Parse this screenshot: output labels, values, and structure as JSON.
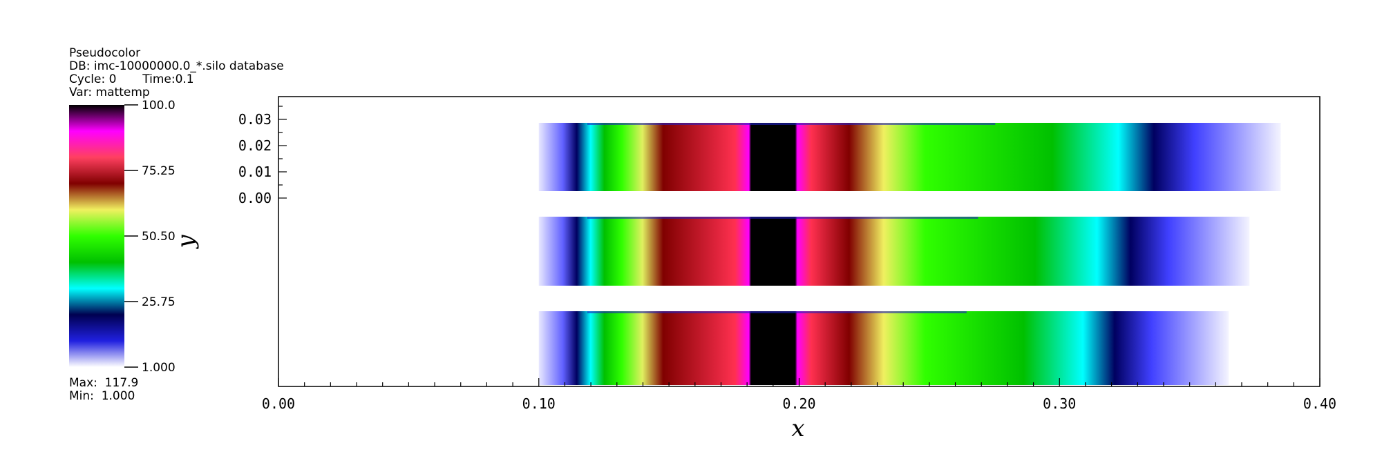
{
  "legend": {
    "plot_type": "Pseudocolor",
    "db": "DB: imc-10000000.0_*.silo database",
    "cycle": "Cycle: 0",
    "time": "Time:0.1",
    "var": "Var: mattemp",
    "max": "Max:  117.9",
    "min": "Min:  1.000",
    "colorbar_ticks": [
      "100.0",
      "75.25",
      "50.50",
      "25.75",
      "1.000"
    ],
    "colorbar_values": [
      100.0,
      75.25,
      50.5,
      25.75,
      1.0
    ]
  },
  "chart_data": {
    "type": "heatmap",
    "xlabel": "x",
    "ylabel": "y",
    "xlim": [
      0.0,
      0.4
    ],
    "x_ticks": [
      "0.00",
      "0.10",
      "0.20",
      "0.30",
      "0.40"
    ],
    "x_tick_values": [
      0.0,
      0.1,
      0.2,
      0.3,
      0.4
    ],
    "y_ticks": [
      "0.03",
      "0.02",
      "0.01",
      "0.00"
    ],
    "y_tick_values": [
      0.03,
      0.02,
      0.01,
      0.0
    ],
    "colormap": [
      "#ffffff",
      "#2020e0",
      "#000050",
      "#00ffff",
      "#00c000",
      "#30ff00",
      "#f0f060",
      "#800000",
      "#ff4060",
      "#ff00ff",
      "#000000"
    ],
    "bands": [
      {
        "x_start": 0.1,
        "x_end": 0.385,
        "hot_center": 0.19
      },
      {
        "x_start": 0.1,
        "x_end": 0.373,
        "hot_center": 0.19
      },
      {
        "x_start": 0.1,
        "x_end": 0.365,
        "hot_center": 0.19
      }
    ]
  }
}
